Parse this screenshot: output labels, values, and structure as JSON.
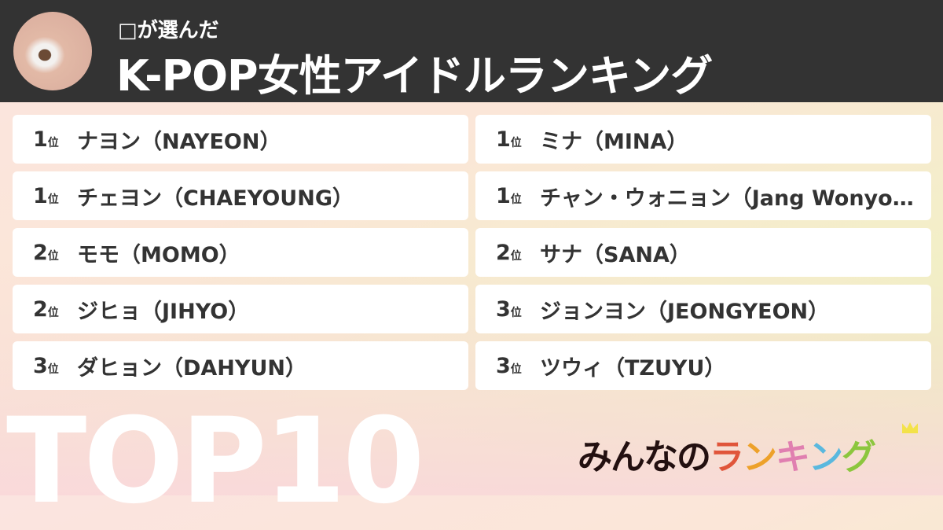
{
  "header": {
    "subtitle": "□が選んだ",
    "title": "K-POP女性アイドルランキング"
  },
  "rank_suffix": "位",
  "items": [
    {
      "rank": "1",
      "name": "ナヨン（NAYEON）"
    },
    {
      "rank": "1",
      "name": "ミナ（MINA）"
    },
    {
      "rank": "1",
      "name": "チェヨン（CHAEYOUNG）"
    },
    {
      "rank": "1",
      "name": "チャン・ウォニョン（Jang Wonyoung）"
    },
    {
      "rank": "2",
      "name": "モモ（MOMO）"
    },
    {
      "rank": "2",
      "name": "サナ（SANA）"
    },
    {
      "rank": "2",
      "name": "ジヒョ（JIHYO）"
    },
    {
      "rank": "3",
      "name": "ジョンヨン（JEONGYEON）"
    },
    {
      "rank": "3",
      "name": "ダヒョン（DAHYUN）"
    },
    {
      "rank": "3",
      "name": "ツウィ（TZUYU）"
    }
  ],
  "footer": {
    "big": "TOP10",
    "logo_a": "みんなの",
    "logo_b": [
      "ラ",
      "ン",
      "キ",
      "ン",
      "グ"
    ],
    "logo_colors": [
      "#e0553a",
      "#eda12a",
      "#e07fb0",
      "#5ab8de",
      "#8cc63e"
    ]
  }
}
